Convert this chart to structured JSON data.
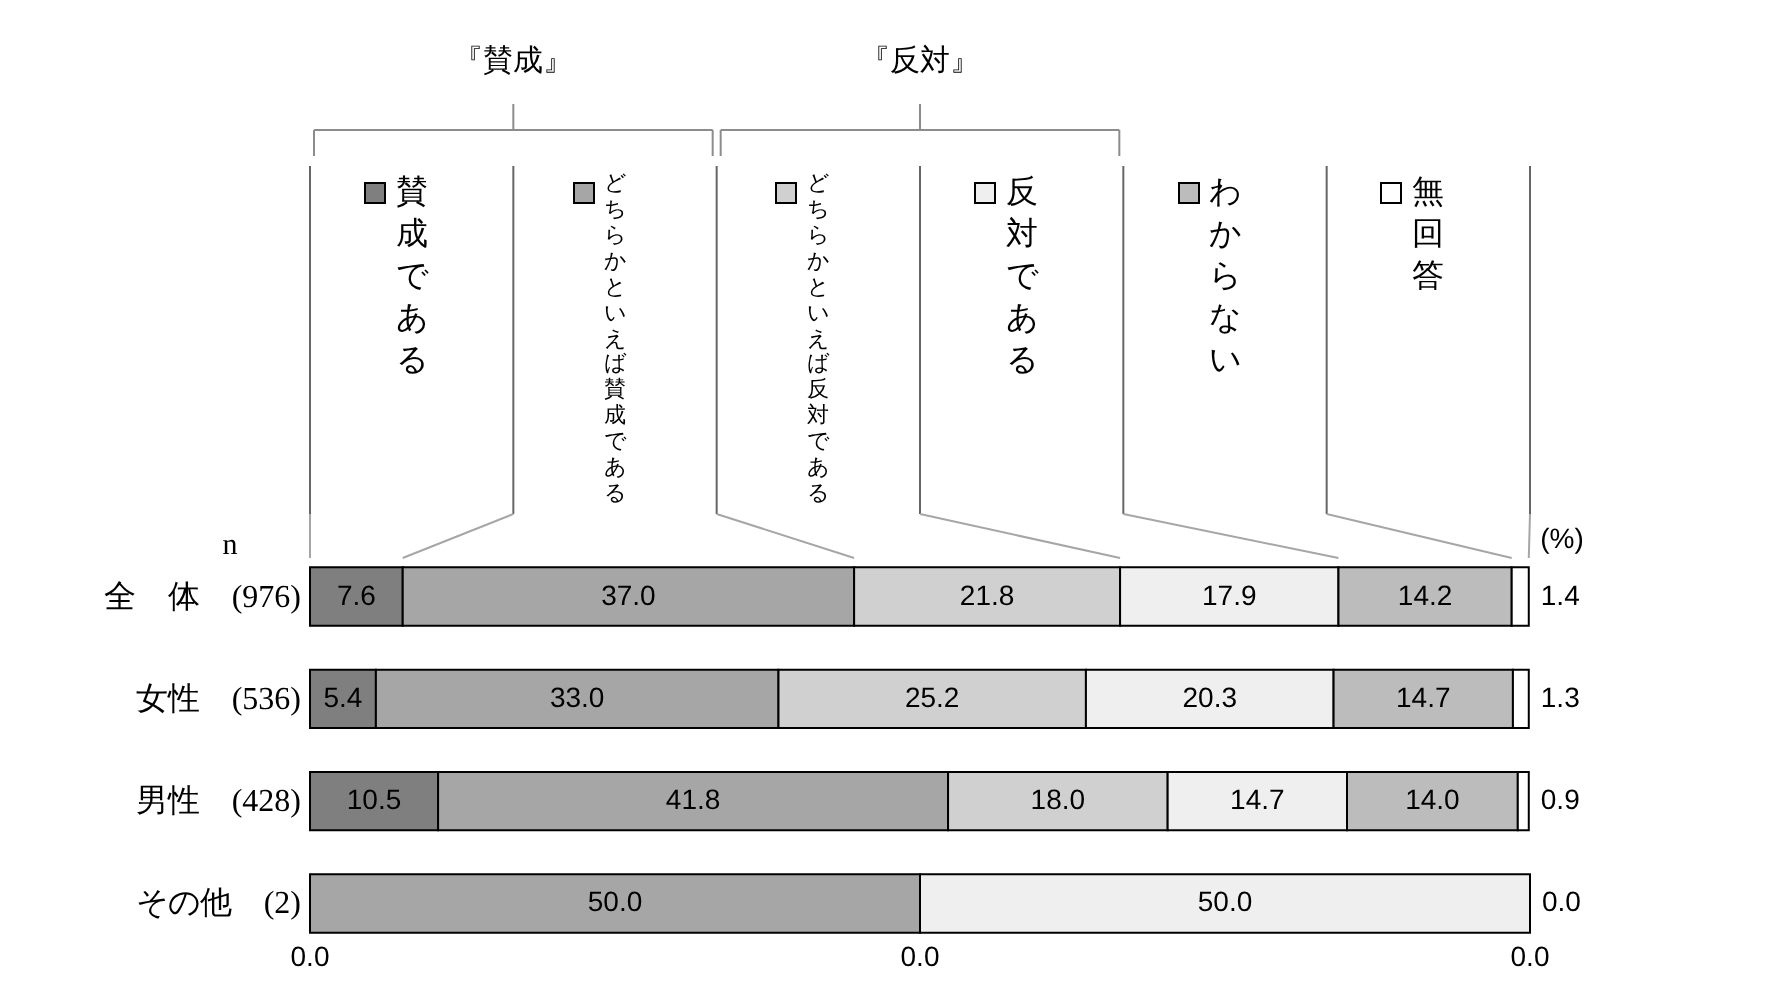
{
  "chart_data": {
    "type": "bar",
    "orientation": "horizontal",
    "stacked": true,
    "categories": [
      "全　体　(976)",
      "女性　(536)",
      "男性　(428)",
      "その他　(2)"
    ],
    "series": [
      {
        "name": "賛成である",
        "color": "#7f7f7f",
        "values": [
          7.6,
          5.4,
          10.5,
          null
        ],
        "value_labels": [
          "7.6",
          "5.4",
          "10.5",
          null
        ]
      },
      {
        "name": "どちらかといえば賛成である",
        "color": "#a6a6a6",
        "values": [
          37.0,
          33.0,
          41.8,
          50.0
        ],
        "value_labels": [
          "37.0",
          "33.0",
          "41.8",
          "50.0"
        ]
      },
      {
        "name": "どちらかといえば反対である",
        "color": "#d0d0d0",
        "values": [
          21.8,
          25.2,
          18.0,
          null
        ],
        "value_labels": [
          "21.8",
          "25.2",
          "18.0",
          null
        ]
      },
      {
        "name": "反対である",
        "color": "#efefef",
        "values": [
          17.9,
          20.3,
          14.7,
          50.0
        ],
        "value_labels": [
          "17.9",
          "20.3",
          "14.7",
          "50.0"
        ]
      },
      {
        "name": "わからない",
        "color": "#bcbcbc",
        "values": [
          14.2,
          14.7,
          14.0,
          null
        ],
        "value_labels": [
          "14.2",
          "14.7",
          "14.0",
          null
        ]
      },
      {
        "name": "無回答",
        "color": "#ffffff",
        "values": [
          1.4,
          1.3,
          0.9,
          0.0
        ],
        "value_labels": [
          "1.4",
          "1.3",
          "0.9",
          "0.0"
        ]
      }
    ],
    "xlim": [
      0,
      100
    ],
    "legend": "top",
    "annotations": [
      "『賛成』",
      "『反対』",
      "n",
      "(%)",
      "0.0",
      "0.0",
      "0.0"
    ]
  }
}
